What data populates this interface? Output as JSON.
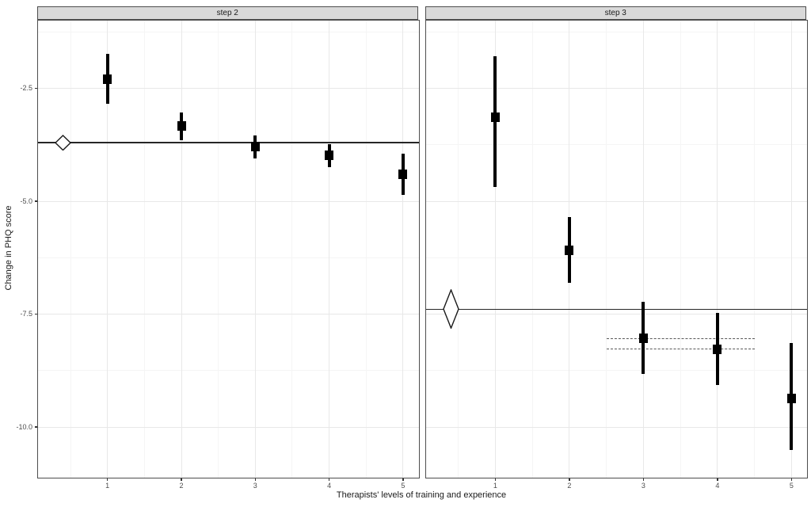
{
  "figure": {
    "background": "#ffffff"
  },
  "chart_data": {
    "type": "pointrange",
    "title": "",
    "xlabel": "Therapists' levels of training and experience",
    "ylabel": "Change in PHQ score",
    "facet_labels": [
      "step 2",
      "step 3"
    ],
    "x_domain": [
      0.06,
      5.21
    ],
    "y_domain_top": -1.0,
    "y_domain_bottom": -11.12,
    "x_major_ticks": [
      1,
      2,
      3,
      4,
      5
    ],
    "x_minor_ticks": [
      0.5,
      1.5,
      2.5,
      3.5,
      4.5
    ],
    "x_tick_labels": [
      "1",
      "2",
      "3",
      "4",
      "5"
    ],
    "y_major_ticks": [
      -2.5,
      -5.0,
      -7.5,
      -10.0
    ],
    "y_minor_ticks": [
      -1.25,
      -3.75,
      -6.25,
      -8.75
    ],
    "y_tick_labels": [
      "-2.5",
      "-5.0",
      "-7.5",
      "-10.0"
    ],
    "grid": true,
    "legend": "none",
    "panels": [
      {
        "label": "step 2",
        "points": [
          {
            "x": 1,
            "y": -2.29,
            "ymin": -2.85,
            "ymax": -1.74
          },
          {
            "x": 2,
            "y": -3.33,
            "ymin": -3.65,
            "ymax": -3.03
          },
          {
            "x": 3,
            "y": -3.79,
            "ymin": -4.05,
            "ymax": -3.54
          },
          {
            "x": 4,
            "y": -3.99,
            "ymin": -4.24,
            "ymax": -3.73
          },
          {
            "x": 5,
            "y": -4.41,
            "ymin": -4.86,
            "ymax": -3.95
          }
        ],
        "reference_line_y": -3.7,
        "pooled_diamond": {
          "x": 0.4,
          "y": -3.7,
          "ymin": -3.88,
          "ymax": -3.52
        },
        "dashed_lines": []
      },
      {
        "label": "step 3",
        "points": [
          {
            "x": 1,
            "y": -3.14,
            "ymin": -4.69,
            "ymax": -1.79
          },
          {
            "x": 2,
            "y": -6.09,
            "ymin": -6.81,
            "ymax": -5.35
          },
          {
            "x": 3,
            "y": -8.04,
            "ymin": -8.83,
            "ymax": -7.22
          },
          {
            "x": 4,
            "y": -8.27,
            "ymin": -9.06,
            "ymax": -7.48
          },
          {
            "x": 5,
            "y": -9.37,
            "ymin": -10.51,
            "ymax": -8.14
          }
        ],
        "reference_line_y": -7.39,
        "pooled_diamond": {
          "x": 0.4,
          "y": -7.39,
          "ymin": -7.83,
          "ymax": -6.95
        },
        "dashed_lines": [
          {
            "y": -8.04,
            "x1": 2.5,
            "x2": 4.5
          },
          {
            "y": -8.27,
            "x1": 2.5,
            "x2": 4.5
          }
        ]
      }
    ],
    "styles": {
      "point_color": "#000000",
      "errorbar_color": "#000000",
      "reference_line_color": "#262626",
      "dashed_line_color": "#595959",
      "diamond_fill": "#ffffff",
      "diamond_stroke": "#1a1a1a",
      "grid_major_color": "#e8e8e8",
      "grid_minor_color": "#f5f5f5",
      "panel_border_color": "#4d4d4d",
      "strip_fill": "#d9d9d9",
      "strip_border": "#4d4d4d",
      "axis_text_color": "#4d4d4d",
      "title_text_color": "#1a1a1a"
    }
  }
}
